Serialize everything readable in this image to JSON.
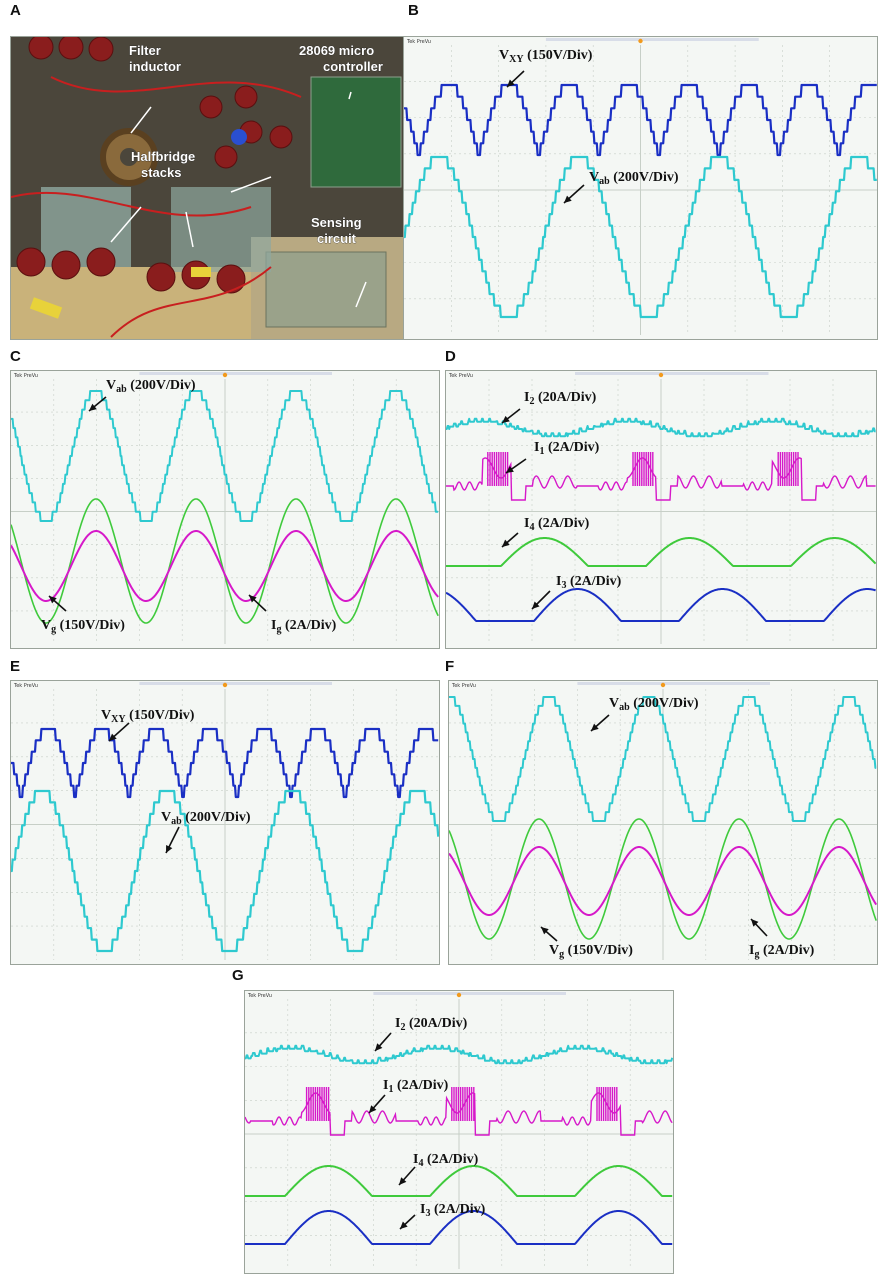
{
  "panel_letters": {
    "A": "A",
    "B": "B",
    "C": "C",
    "D": "D",
    "E": "E",
    "F": "F",
    "G": "G"
  },
  "photo": {
    "labels": [
      "Filter inductor",
      "28069 micro controller",
      "Halfbridge stacks",
      "Sensing circuit"
    ]
  },
  "colors": {
    "cyan": "#2ec9cf",
    "blue": "#1a2fc4",
    "magenta": "#d619c9",
    "green": "#3fca3c",
    "grid": "#c7cfc7",
    "screen": "#f4f7f4"
  },
  "scope_header_text": "Tek PreVu",
  "traces": {
    "vxy": "V_XY (150V/Div)",
    "vab": "V_ab (200V/Div)",
    "vg": "V_g (150V/Div)",
    "ig": "I_g (2A/Div)",
    "i2": "I_2 (20A/Div)",
    "i1": "I_1 (2A/Div)",
    "i4": "I_4 (2A/Div)",
    "i3": "I_3 (2A/Div)"
  }
}
